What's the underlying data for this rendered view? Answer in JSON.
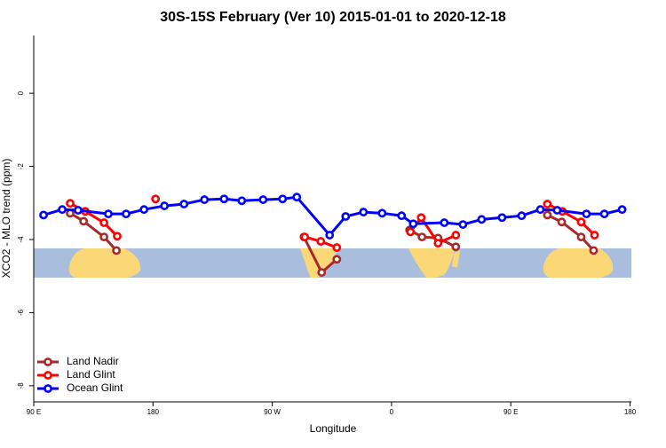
{
  "chart_data": {
    "type": "line",
    "title": "30S-15S February (Ver 10)   2015-01-01 to 2020-12-18",
    "x_label": "Longitude",
    "y_label": "XCO2 - MLO trend (ppm)",
    "xlim": [
      90,
      541
    ],
    "ylim": [
      -8.44,
      1.58
    ],
    "xticks": [
      {
        "value": 90,
        "label": "90 E"
      },
      180,
      {
        "value": 270,
        "label": "90 W"
      },
      {
        "value": 360,
        "label": "0"
      },
      {
        "value": 450,
        "label": "90 E"
      },
      {
        "value": 540,
        "label": "180"
      }
    ],
    "yticks": [
      0,
      -2,
      -4,
      -6,
      -8
    ],
    "legend": "bottom-left",
    "series": [
      {
        "name": "Land Nadir",
        "color": "#a52a2a",
        "x": [
          117.5,
          127.6,
          143,
          152.4,
          220,
          293.9,
          307.3,
          318.7,
          345,
          373.6,
          383,
          395.1,
          408.5,
          440,
          477.6,
          488.4,
          503.1,
          512.5
        ],
        "values": [
          -3.28,
          -3.5,
          -3.93,
          -4.3,
          null,
          -3.93,
          -4.9,
          -4.54,
          null,
          -3.74,
          -3.93,
          -3.96,
          -4.2,
          null,
          -3.33,
          -3.52,
          -3.93,
          -4.3
        ]
      },
      {
        "name": "Land Glint",
        "color": "#ff0000",
        "x": [
          117.5,
          128.9,
          143,
          153,
          167,
          181.9,
          240,
          294.5,
          306.6,
          318.7,
          345,
          374.3,
          382.4,
          395.1,
          408.5,
          440,
          477.6,
          489,
          503.1,
          513.2
        ],
        "values": [
          -3.01,
          -3.23,
          -3.54,
          -3.91,
          null,
          -2.89,
          null,
          -3.93,
          -4.05,
          -4.22,
          null,
          -3.79,
          -3.4,
          -4.1,
          -3.88,
          null,
          -3.03,
          -3.23,
          -3.52,
          -3.88
        ]
      },
      {
        "name": "Ocean Glint",
        "color": "#0000ff",
        "x": [
          97.4,
          111.5,
          123.5,
          146.3,
          159.7,
          173.2,
          188.6,
          203.4,
          218.8,
          233.6,
          247,
          263.1,
          277.8,
          288.5,
          313.3,
          325.4,
          338.8,
          352.9,
          367.6,
          376.4,
          399.8,
          413.9,
          428,
          443.4,
          458.2,
          472.3,
          485,
          507.1,
          520.6,
          534
        ],
        "values": [
          -3.33,
          -3.18,
          -3.2,
          -3.3,
          -3.3,
          -3.18,
          -3.08,
          -3.03,
          -2.91,
          -2.89,
          -2.94,
          -2.91,
          -2.89,
          -2.84,
          -3.88,
          -3.37,
          -3.25,
          -3.28,
          -3.35,
          -3.57,
          -3.54,
          -3.59,
          -3.45,
          -3.4,
          -3.35,
          -3.18,
          -3.2,
          -3.3,
          -3.3,
          -3.18
        ]
      }
    ]
  }
}
